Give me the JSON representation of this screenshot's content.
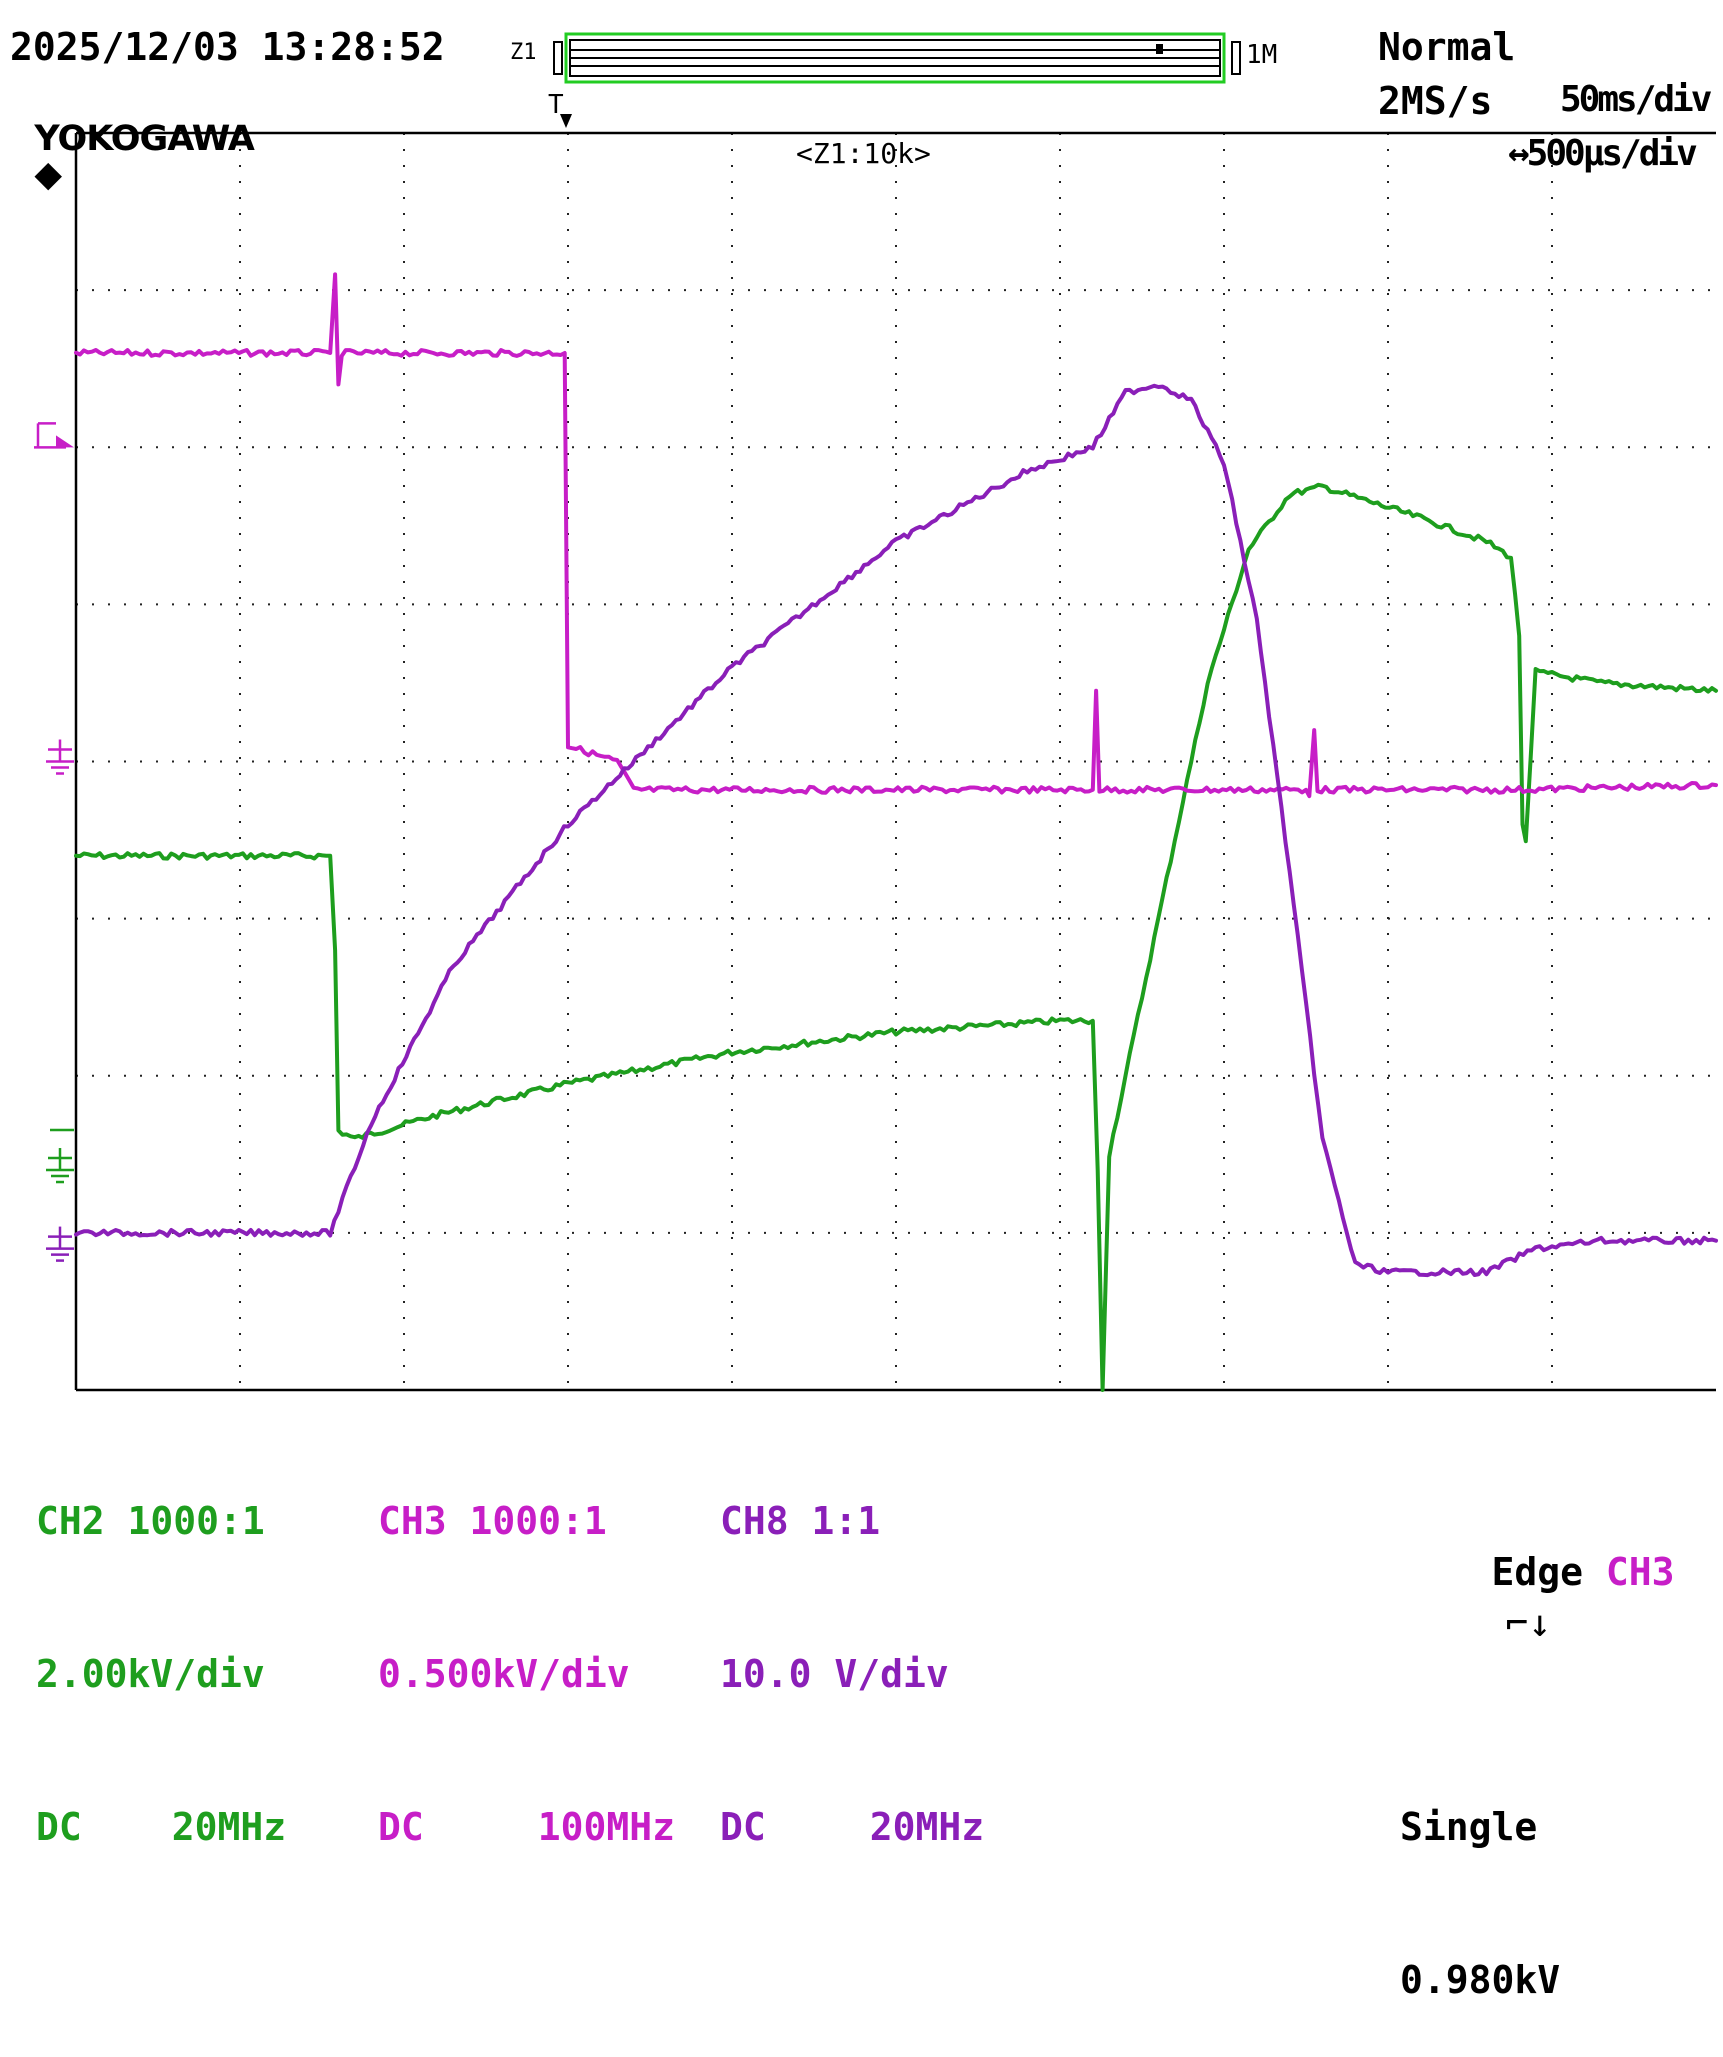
{
  "header": {
    "datetime": "2025/12/03 13:28:52",
    "brand": "YOKOGAWA",
    "zoom_left_label": "Z1",
    "record_length": "1M",
    "trigger_marker": "T",
    "acq_mode": "Normal",
    "sample_rate": "2MS/s",
    "main_timebase": "50ms/div",
    "zoom_label": "<Z1:10k>",
    "zoom_timebase": "↔500μs/div"
  },
  "channels": [
    {
      "id": "CH2",
      "probe": "1000:1",
      "scale": "2.00kV/div",
      "coupling": "DC",
      "bandwidth": "20MHz",
      "color": "#1e9e1e"
    },
    {
      "id": "CH3",
      "probe": "1000:1",
      "scale": "0.500kV/div",
      "coupling": "DC",
      "bandwidth": "100MHz",
      "color": "#c71ec7"
    },
    {
      "id": "CH8",
      "probe": "1:1",
      "scale": "10.0 V/div",
      "coupling": "DC",
      "bandwidth": "20MHz",
      "color": "#8a1fb8"
    }
  ],
  "trigger": {
    "type": "Edge",
    "source": "CH3",
    "mode": "Single",
    "level": "0.980kV"
  },
  "colors": {
    "ch2": "#1e9e1e",
    "ch3": "#c71ec7",
    "ch8": "#8a1fb8",
    "grid": "#222222",
    "zoom_bar": "#22cc22"
  },
  "chart_data": {
    "type": "line",
    "x_unit": "div",
    "y_unit": "div",
    "xlim": [
      0,
      10
    ],
    "ylim": [
      -4,
      4
    ],
    "grid": true,
    "grid_style": "dotted",
    "series": [
      {
        "name": "CH2",
        "points": [
          [
            0,
            -0.6
          ],
          [
            1.55,
            -0.6
          ],
          [
            1.58,
            -1.2
          ],
          [
            1.6,
            -2.35
          ],
          [
            1.7,
            -2.4
          ],
          [
            2.2,
            -2.25
          ],
          [
            3,
            -2.05
          ],
          [
            4,
            -1.85
          ],
          [
            5,
            -1.72
          ],
          [
            6.0,
            -1.65
          ],
          [
            6.2,
            -1.65
          ],
          [
            6.23,
            -2.6
          ],
          [
            6.26,
            -4.0
          ],
          [
            6.3,
            -2.5
          ],
          [
            6.6,
            -1.0
          ],
          [
            6.9,
            0.5
          ],
          [
            7.15,
            1.35
          ],
          [
            7.4,
            1.7
          ],
          [
            7.6,
            1.75
          ],
          [
            8.2,
            1.55
          ],
          [
            8.6,
            1.4
          ],
          [
            8.75,
            1.3
          ],
          [
            8.8,
            0.8
          ],
          [
            8.82,
            -0.4
          ],
          [
            8.84,
            -0.5
          ],
          [
            8.9,
            0.57
          ],
          [
            9.3,
            0.5
          ],
          [
            10,
            0.45
          ]
        ]
      },
      {
        "name": "CH3",
        "points": [
          [
            0,
            2.6
          ],
          [
            1.55,
            2.6
          ],
          [
            1.58,
            3.1
          ],
          [
            1.6,
            2.4
          ],
          [
            1.62,
            2.6
          ],
          [
            2.98,
            2.6
          ],
          [
            3.0,
            0.1
          ],
          [
            3.3,
            0.0
          ],
          [
            3.4,
            -0.18
          ],
          [
            5.5,
            -0.18
          ],
          [
            6.2,
            -0.18
          ],
          [
            6.22,
            0.45
          ],
          [
            6.24,
            -0.18
          ],
          [
            7.5,
            -0.18
          ],
          [
            7.52,
            -0.22
          ],
          [
            7.55,
            0.2
          ],
          [
            7.57,
            -0.18
          ],
          [
            8.8,
            -0.18
          ],
          [
            10,
            -0.15
          ]
        ]
      },
      {
        "name": "CH8",
        "points": [
          [
            0,
            -3.0
          ],
          [
            1.55,
            -3.0
          ],
          [
            1.8,
            -2.3
          ],
          [
            2.3,
            -1.3
          ],
          [
            3,
            -0.4
          ],
          [
            4,
            0.6
          ],
          [
            5,
            1.4
          ],
          [
            5.8,
            1.85
          ],
          [
            6.2,
            2.0
          ],
          [
            6.4,
            2.35
          ],
          [
            6.6,
            2.4
          ],
          [
            6.8,
            2.3
          ],
          [
            7.0,
            1.9
          ],
          [
            7.2,
            0.9
          ],
          [
            7.4,
            -0.7
          ],
          [
            7.6,
            -2.4
          ],
          [
            7.8,
            -3.2
          ],
          [
            8.0,
            -3.25
          ],
          [
            8.6,
            -3.25
          ],
          [
            8.9,
            -3.1
          ],
          [
            9.3,
            -3.05
          ],
          [
            10,
            -3.05
          ]
        ]
      }
    ],
    "markers": {
      "trigger_level_ch3": 2.05,
      "ground_ch3": 0.0,
      "ground_ch2": -2.6,
      "ground_ch8": -3.1
    }
  }
}
